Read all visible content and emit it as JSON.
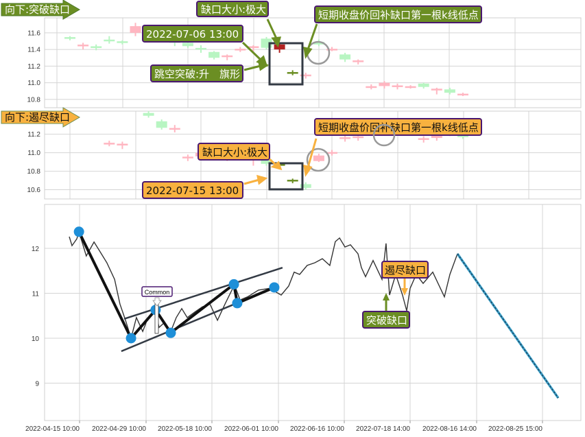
{
  "colors": {
    "olive": "#6b8e23",
    "orange": "#f8b13f",
    "label_border": "#4a1870",
    "up_faded": "#ffb6c1",
    "down_faded": "#b8f5c2",
    "gap_red": "#b22222",
    "gap_green": "#6b8e23",
    "price_line": "#333333",
    "forecast_line": "#3aa0c8",
    "pivot": "#1e8fd8"
  },
  "chart_data": [
    {
      "type": "candlestick",
      "panel": "top",
      "ylim": [
        10.7,
        11.78
      ],
      "yticks": [
        "11.6",
        "11.4",
        "11.2",
        "11.0",
        "10.8"
      ],
      "candles": [
        [
          11.54,
          11.56,
          11.51,
          11.53
        ],
        [
          11.45,
          11.48,
          11.4,
          11.45
        ],
        [
          11.43,
          11.46,
          11.39,
          11.42
        ],
        [
          11.51,
          11.56,
          11.47,
          11.5
        ],
        [
          11.49,
          11.51,
          11.46,
          11.47
        ],
        [
          11.6,
          11.72,
          11.56,
          11.68
        ],
        null,
        [
          11.57,
          11.6,
          11.52,
          11.53
        ],
        [
          11.52,
          11.55,
          11.44,
          11.48
        ],
        [
          11.48,
          11.5,
          11.42,
          11.44
        ],
        [
          11.41,
          11.45,
          11.36,
          11.4
        ],
        [
          11.37,
          11.38,
          11.28,
          11.3
        ],
        [
          11.31,
          11.34,
          11.27,
          11.32
        ],
        [
          11.4,
          11.43,
          11.37,
          11.4
        ],
        [
          11.41,
          11.45,
          11.38,
          11.43
        ],
        [
          11.53,
          11.55,
          11.4,
          11.42
        ],
        [
          11.4,
          11.48,
          11.36,
          11.46
        ],
        [
          11.12,
          11.15,
          11.09,
          11.11
        ],
        [
          11.08,
          11.12,
          11.05,
          11.09
        ],
        [
          11.49,
          11.52,
          11.44,
          11.46
        ],
        [
          11.4,
          11.43,
          11.38,
          11.4
        ],
        [
          11.34,
          11.36,
          11.25,
          11.28
        ],
        [
          11.26,
          11.28,
          11.22,
          11.26
        ],
        [
          10.95,
          10.98,
          10.92,
          10.95
        ],
        [
          10.96,
          11.02,
          10.93,
          11.0
        ],
        [
          10.96,
          10.99,
          10.92,
          10.96
        ],
        [
          10.95,
          10.97,
          10.93,
          10.95
        ],
        [
          10.99,
          11.0,
          10.93,
          10.95
        ],
        [
          10.92,
          10.94,
          10.86,
          10.92
        ],
        [
          10.92,
          10.94,
          10.86,
          10.88
        ],
        [
          10.86,
          10.88,
          10.84,
          10.86
        ]
      ],
      "highlight": [
        16,
        17
      ],
      "annotations": {
        "direction": "向下:突破缺口",
        "gap_size": "缺口大小:极大",
        "time": "2022-07-06 13:00",
        "pattern": "跳空突破:升　旗形",
        "note": "短期收盘价回补缺口第一根k线低点"
      }
    },
    {
      "type": "candlestick",
      "panel": "middle",
      "ylim": [
        10.5,
        11.45
      ],
      "yticks": [
        "11.2",
        "11.0",
        "10.8",
        "10.6"
      ],
      "candles": [
        null,
        null,
        null,
        [
          11.1,
          11.13,
          11.07,
          11.1
        ],
        [
          11.09,
          11.12,
          11.04,
          11.09
        ],
        null,
        [
          11.43,
          11.45,
          11.38,
          11.4
        ],
        [
          11.34,
          11.36,
          11.25,
          11.27
        ],
        [
          11.26,
          11.3,
          11.22,
          11.26
        ],
        [
          10.95,
          10.98,
          10.91,
          10.95
        ],
        [
          10.96,
          11.02,
          10.93,
          11.0
        ],
        [
          10.97,
          11.0,
          10.93,
          10.97
        ],
        [
          10.95,
          10.98,
          10.91,
          10.95
        ],
        [
          10.97,
          10.99,
          10.93,
          10.95
        ],
        [
          10.92,
          10.97,
          10.86,
          10.93
        ],
        [
          10.93,
          10.95,
          10.86,
          10.88
        ],
        [
          10.87,
          10.89,
          10.85,
          10.87
        ],
        [
          10.69,
          10.72,
          10.67,
          10.7
        ],
        [
          10.66,
          10.68,
          10.6,
          10.62
        ],
        [
          10.91,
          10.99,
          10.9,
          10.97
        ],
        [
          11.0,
          11.03,
          10.97,
          11.0
        ],
        [
          11.16,
          11.19,
          11.12,
          11.16
        ],
        [
          11.16,
          11.2,
          11.13,
          11.17
        ],
        [
          11.28,
          11.31,
          11.26,
          11.29
        ],
        null,
        null,
        [
          11.29,
          11.31,
          11.21,
          11.26
        ],
        [
          11.15,
          11.18,
          11.11,
          11.15
        ],
        [
          11.16,
          11.23,
          11.13,
          11.21
        ],
        [
          11.21,
          11.25,
          11.18,
          11.21
        ],
        [
          11.18,
          11.2,
          11.15,
          11.17
        ]
      ],
      "highlight": [
        16,
        17
      ],
      "annotations": {
        "direction": "向下:遏尽缺口",
        "gap_size": "缺口大小:极大",
        "time": "2022-07-15 13:00",
        "note": "短期收盘价回补缺口第一根k线低点"
      }
    },
    {
      "type": "line",
      "panel": "bottom",
      "ylim": [
        8.2,
        13.0
      ],
      "yticks": [
        "12",
        "11",
        "10",
        "9"
      ],
      "xticks": [
        "2022-04-15 10:00",
        "2022-04-29 10:00",
        "2022-05-18 10:00",
        "2022-06-01 10:00",
        "2022-06-16 10:00",
        "2022-07-18 14:00",
        "2022-08-16 14:00",
        "2022-08-25 15:00"
      ],
      "grid": true,
      "price": [
        [
          "2022-04-13 06:00",
          12.26
        ],
        [
          "2022-04-13 20:00",
          12.06
        ],
        [
          "2022-04-14 20:00",
          12.21
        ],
        [
          "2022-04-15 07:00",
          12.37
        ],
        [
          "2022-04-16 20:00",
          11.83
        ],
        [
          "2022-04-18 11:00",
          12.14
        ],
        [
          "2022-04-19 14:00",
          11.95
        ],
        [
          "2022-04-21 04:00",
          11.68
        ],
        [
          "2022-04-22 19:00",
          11.31
        ],
        [
          "2022-04-23 22:00",
          10.76
        ],
        [
          "2022-04-25 02:00",
          10.4
        ],
        [
          "2022-04-26 06:00",
          10.0
        ],
        [
          "2022-04-27 09:00",
          10.46
        ],
        [
          "2022-04-28 17:00",
          10.15
        ],
        [
          "2022-04-30 00:00",
          10.46
        ],
        [
          "2022-05-02 04:00",
          10.61
        ],
        [
          "2022-05-03 04:00",
          10.24
        ],
        [
          "2022-05-04 18:00",
          10.35
        ],
        [
          "2022-05-06 13:00",
          10.15
        ],
        [
          "2022-05-08 03:00",
          10.46
        ],
        [
          "2022-05-09 17:00",
          10.66
        ],
        [
          "2022-05-11 07:00",
          10.46
        ],
        [
          "2022-05-13 11:00",
          10.58
        ],
        [
          "2022-05-15 16:00",
          10.7
        ],
        [
          "2022-05-17 20:00",
          10.76
        ],
        [
          "2022-05-19 14:00",
          10.4
        ],
        [
          "2022-05-21 04:00",
          10.76
        ],
        [
          "2022-05-23 04:00",
          11.19
        ],
        [
          "2022-05-24 08:00",
          10.85
        ],
        [
          "2022-05-25 22:00",
          10.92
        ],
        [
          "2022-05-28 05:00",
          11.07
        ],
        [
          "2022-05-30 13:00",
          11.11
        ],
        [
          "2022-06-02 01:00",
          10.96
        ],
        [
          "2022-06-03 18:00",
          11.16
        ],
        [
          "2022-06-05 00:00",
          11.47
        ],
        [
          "2022-06-06 06:00",
          11.42
        ],
        [
          "2022-06-07 23:00",
          11.62
        ],
        [
          "2022-06-09 17:00",
          11.68
        ],
        [
          "2022-06-11 10:00",
          11.77
        ],
        [
          "2022-06-13 03:00",
          11.62
        ],
        [
          "2022-06-14 09:00",
          12.15
        ],
        [
          "2022-06-15 08:00",
          12.23
        ],
        [
          "2022-06-16 18:00",
          12.03
        ],
        [
          "2022-06-19 10:00",
          12.08
        ],
        [
          "2022-06-23 03:00",
          11.88
        ],
        [
          "2022-06-24 19:00",
          11.57
        ],
        [
          "2022-06-26 19:00",
          11.37
        ],
        [
          "2022-06-30 12:00",
          11.73
        ],
        [
          "2022-07-03 04:00",
          11.47
        ],
        [
          "2022-07-04 20:00",
          11.31
        ],
        [
          "2022-07-06 20:00",
          12.11
        ],
        [
          "2022-07-08 13:00",
          10.96
        ],
        [
          "2022-07-11 13:00",
          11.42
        ],
        [
          "2022-07-14 21:00",
          10.96
        ],
        [
          "2022-07-16 22:00",
          10.61
        ],
        [
          "2022-07-18 14:00",
          11.11
        ],
        [
          "2022-07-21 06:00",
          11.42
        ],
        [
          "2022-07-24 06:00",
          11.22
        ],
        [
          "2022-07-28 11:00",
          11.47
        ],
        [
          "2022-08-02 13:00",
          10.92
        ],
        [
          "2022-08-04 22:00",
          11.42
        ],
        [
          "2022-08-08 05:00",
          11.88
        ]
      ],
      "forecast": [
        [
          "2022-08-08 05:00",
          11.88
        ],
        [
          "2022-08-27 19:00",
          8.67
        ]
      ],
      "pivots": [
        [
          "2022-04-15 07:00",
          12.37
        ],
        [
          "2022-04-26 06:00",
          10.0
        ],
        [
          "2022-05-02 04:00",
          10.63
        ],
        [
          "2022-05-06 13:00",
          10.12
        ],
        [
          "2022-05-23 01:00",
          11.2
        ],
        [
          "2022-05-23 18:00",
          10.78
        ],
        [
          "2022-05-31 13:00",
          11.13
        ]
      ],
      "channel_upper": [
        [
          "2022-04-24 19:00",
          10.43
        ],
        [
          "2022-06-02 08:00",
          11.57
        ]
      ],
      "channel_lower": [
        [
          "2022-04-24 05:00",
          9.71
        ],
        [
          "2022-05-31 03:00",
          11.11
        ]
      ],
      "annotations": {
        "common": "Common",
        "breakaway": "突破缺口",
        "exhaustion": "遏尽缺口"
      }
    }
  ]
}
